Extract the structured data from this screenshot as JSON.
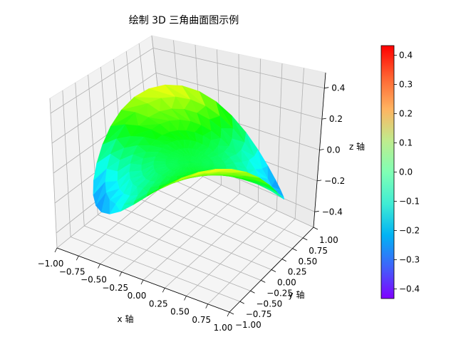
{
  "chart_data": {
    "type": "surface3d",
    "title": "绘制 3D 三角曲面图示例",
    "xlabel": "x 轴",
    "ylabel": "y 轴",
    "zlabel": "z 轴",
    "xlim": [
      -1.0,
      1.0
    ],
    "ylim": [
      -1.0,
      1.0
    ],
    "zlim": [
      -0.5,
      0.5
    ],
    "x_ticks": [
      -1.0,
      -0.75,
      -0.5,
      -0.25,
      0.0,
      0.25,
      0.5,
      0.75,
      1.0
    ],
    "x_tick_labels": [
      "−1.00",
      "−0.75",
      "−0.50",
      "−0.25",
      "0.00",
      "0.25",
      "0.50",
      "0.75",
      "1.00"
    ],
    "y_ticks": [
      -1.0,
      -0.75,
      -0.5,
      -0.25,
      0.0,
      0.25,
      0.5,
      0.75,
      1.0
    ],
    "y_tick_labels": [
      "−1.00",
      "−0.75",
      "−0.50",
      "−0.25",
      "0.00",
      "0.25",
      "0.50",
      "0.75",
      "1.00"
    ],
    "z_ticks": [
      -0.4,
      -0.2,
      0.0,
      0.2,
      0.4
    ],
    "z_tick_labels": [
      "−0.4",
      "−0.2",
      "0.0",
      "0.2",
      "0.4"
    ],
    "surface": {
      "function": "z = sin(-x*y) / 2 on the unit disc",
      "radii": [
        0.125,
        0.25,
        0.375,
        0.5,
        0.625,
        0.75,
        0.875,
        1.0
      ],
      "angles_per_ring": 36,
      "z_range": [
        -0.433,
        0.433
      ]
    },
    "colormap": "rainbow",
    "colorbar": {
      "range": [
        -0.433,
        0.433
      ],
      "ticks": [
        0.4,
        0.3,
        0.2,
        0.1,
        0.0,
        -0.1,
        -0.2,
        -0.3,
        -0.4
      ],
      "tick_labels": [
        "0.4",
        "0.3",
        "0.2",
        "0.1",
        "0.0",
        "−0.1",
        "−0.2",
        "−0.3",
        "−0.4"
      ]
    },
    "grid": true
  }
}
